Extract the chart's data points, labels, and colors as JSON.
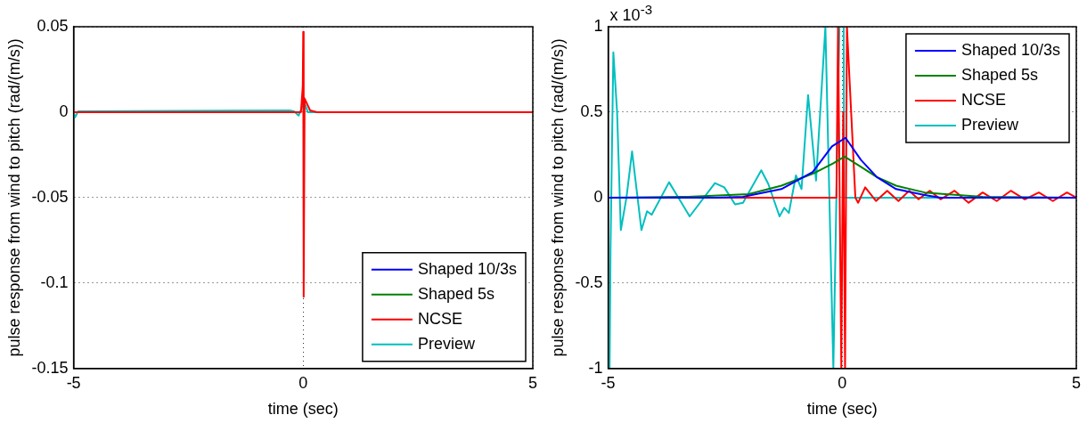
{
  "chart_data": [
    {
      "type": "line",
      "xlabel": "time (sec)",
      "ylabel": "pulse response from wind to pitch (rad/(m/s))",
      "xlim": [
        -5,
        5
      ],
      "xticks": [
        -5,
        0,
        5
      ],
      "ylim": [
        -0.15,
        0.05
      ],
      "yticks": [
        -0.15,
        -0.1,
        -0.05,
        0,
        0.05
      ],
      "grid": true,
      "legend": "bottom right",
      "line_style": "solid",
      "marker": "none",
      "series": [
        {
          "name": "Shaped 10/3s",
          "color": "#0000ff"
        },
        {
          "name": "Shaped 5s",
          "color": "#008000"
        },
        {
          "name": "NCSE",
          "color": "#ff0000",
          "x": [
            -5,
            -0.05,
            -0.01,
            0,
            0.01,
            0.03,
            0.15,
            0.3,
            5
          ],
          "values": [
            0,
            0,
            0.015,
            0.047,
            -0.108,
            0.008,
            0.001,
            0,
            0
          ]
        },
        {
          "name": "Preview",
          "color": "#00bfbf",
          "x": [
            -5,
            -4.97,
            -4.9,
            -0.3,
            -0.2,
            -0.1,
            0.02,
            0.1,
            5
          ],
          "values": [
            0,
            -0.003,
            0.0005,
            0.001,
            0.0005,
            -0.002,
            0.006,
            0,
            0
          ]
        }
      ]
    },
    {
      "type": "line",
      "xlabel": "time (sec)",
      "ylabel": "pulse response from wind to pitch (rad/(m/s))",
      "annotations": [
        "x 10$^{-3}$"
      ],
      "xlim": [
        -5,
        5
      ],
      "xticks": [
        -5,
        0,
        5
      ],
      "ylim": [
        -1,
        1
      ],
      "yticks": [
        -1,
        -0.5,
        0,
        0.5,
        1
      ],
      "grid": true,
      "legend": "top right",
      "line_style": "solid",
      "marker": "none",
      "series": [
        {
          "name": "Shaped 10/3s",
          "color": "#0000ff",
          "x": [
            -5,
            -2.7,
            -2.12,
            -1.3,
            -0.63,
            -0.22,
            0.07,
            0.4,
            0.74,
            1.15,
            1.76,
            2.1,
            5
          ],
          "values": [
            0,
            0,
            0.005,
            0.05,
            0.15,
            0.3,
            0.35,
            0.22,
            0.12,
            0.05,
            0.015,
            0,
            0
          ]
        },
        {
          "name": "Shaped 5s",
          "color": "#008000",
          "x": [
            -5,
            -3.3,
            -2,
            -1.3,
            -0.63,
            -0.2,
            0.05,
            0.4,
            0.74,
            1.15,
            1.76,
            2.2,
            3,
            5
          ],
          "values": [
            0,
            0.005,
            0.02,
            0.07,
            0.14,
            0.2,
            0.24,
            0.18,
            0.12,
            0.07,
            0.03,
            0.02,
            0.005,
            0
          ]
        },
        {
          "name": "NCSE",
          "color": "#ff0000",
          "x": [
            -5,
            -0.125,
            -0.09,
            -0.02,
            0.02,
            0.06,
            0.1,
            0.28,
            0.34,
            0.49,
            0.72,
            0.96,
            1.2,
            1.43,
            1.63,
            1.87,
            2.1,
            2.4,
            2.7,
            3,
            3.3,
            3.6,
            3.9,
            4.2,
            4.5,
            4.8,
            5
          ],
          "values": [
            0,
            0,
            1,
            -1,
            0.5,
            -1,
            1,
            0,
            -0.03,
            0.06,
            -0.02,
            0.04,
            -0.02,
            0.04,
            -0.01,
            0.04,
            -0.01,
            0.04,
            -0.03,
            0.03,
            -0.02,
            0.04,
            -0.01,
            0.03,
            -0.02,
            0.03,
            0
          ]
        },
        {
          "name": "Preview",
          "color": "#00bfbf",
          "x": [
            -5,
            -4.97,
            -4.95,
            -4.89,
            -4.81,
            -4.73,
            -4.61,
            -4.49,
            -4.29,
            -4.17,
            -4.07,
            -3.7,
            -3.5,
            -3.26,
            -2.72,
            -2.52,
            -2.29,
            -2.12,
            -1.73,
            -1.58,
            -1.34,
            -1.24,
            -1.14,
            -0.99,
            -0.87,
            -0.73,
            -0.56,
            -0.36,
            -0.19,
            -0.06,
            -0.03,
            0.03,
            0.04,
            5
          ],
          "values": [
            -1,
            -1,
            -0.3,
            0.85,
            0.5,
            -0.19,
            0,
            0.27,
            -0.19,
            -0.08,
            -0.1,
            0.09,
            0,
            -0.11,
            0.085,
            0.06,
            -0.04,
            -0.03,
            0.16,
            0.08,
            -0.11,
            -0.06,
            -0.09,
            0.13,
            0.05,
            0.6,
            0.1,
            1,
            -1,
            1,
            null,
            1,
            0,
            0
          ]
        }
      ]
    }
  ]
}
